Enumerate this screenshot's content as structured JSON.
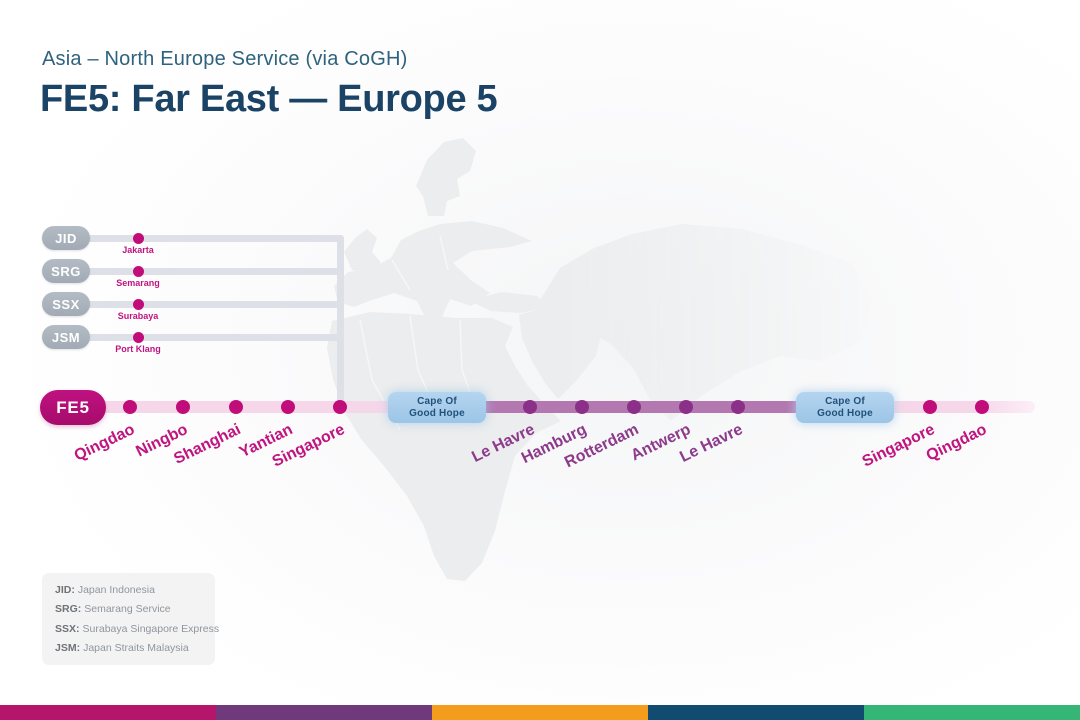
{
  "header": {
    "subtitle": "Asia – North Europe Service (via CoGH)",
    "title": "FE5: Far East — Europe 5"
  },
  "feeders": [
    {
      "code": "JID",
      "port": "Jakarta"
    },
    {
      "code": "SRG",
      "port": "Semarang"
    },
    {
      "code": "SSX",
      "port": "Surabaya"
    },
    {
      "code": "JSM",
      "port": "Port Klang"
    }
  ],
  "route": {
    "service_badge": "FE5",
    "cape_badge": {
      "line1": "Cape Of",
      "line2": "Good Hope"
    },
    "stops": [
      {
        "name": "Qingdao",
        "leg": "asia-outbound"
      },
      {
        "name": "Ningbo",
        "leg": "asia-outbound"
      },
      {
        "name": "Shanghai",
        "leg": "asia-outbound"
      },
      {
        "name": "Yantian",
        "leg": "asia-outbound"
      },
      {
        "name": "Singapore",
        "leg": "asia-outbound"
      },
      {
        "name": "Le Havre",
        "leg": "europe"
      },
      {
        "name": "Hamburg",
        "leg": "europe"
      },
      {
        "name": "Rotterdam",
        "leg": "europe"
      },
      {
        "name": "Antwerp",
        "leg": "europe"
      },
      {
        "name": "Le Havre",
        "leg": "europe"
      },
      {
        "name": "Singapore",
        "leg": "asia-return"
      },
      {
        "name": "Qingdao",
        "leg": "asia-return"
      }
    ]
  },
  "legend": [
    {
      "code": "JID:",
      "name": "Japan Indonesia"
    },
    {
      "code": "SRG:",
      "name": "Semarang Service"
    },
    {
      "code": "SSX:",
      "name": "Surabaya Singapore Express"
    },
    {
      "code": "JSM:",
      "name": "Japan Straits Malaysia"
    }
  ],
  "footer_bar_colors": [
    "#b5156b",
    "#6e3a7c",
    "#f49d1c",
    "#114c70",
    "#35b576"
  ],
  "colors": {
    "accent_magenta_dot": "#c00d7a",
    "accent_magenta_label": "#c01480",
    "europe_purple_dot": "#8c2f88",
    "europe_purple_label": "#8d3a8c",
    "line_pink": "#f6d7e9",
    "line_purple": "#b478b0",
    "cape_badge_bg": "#a9cdeb",
    "navy": "#1b4365",
    "feeder_grey": "#a9b2bc"
  }
}
